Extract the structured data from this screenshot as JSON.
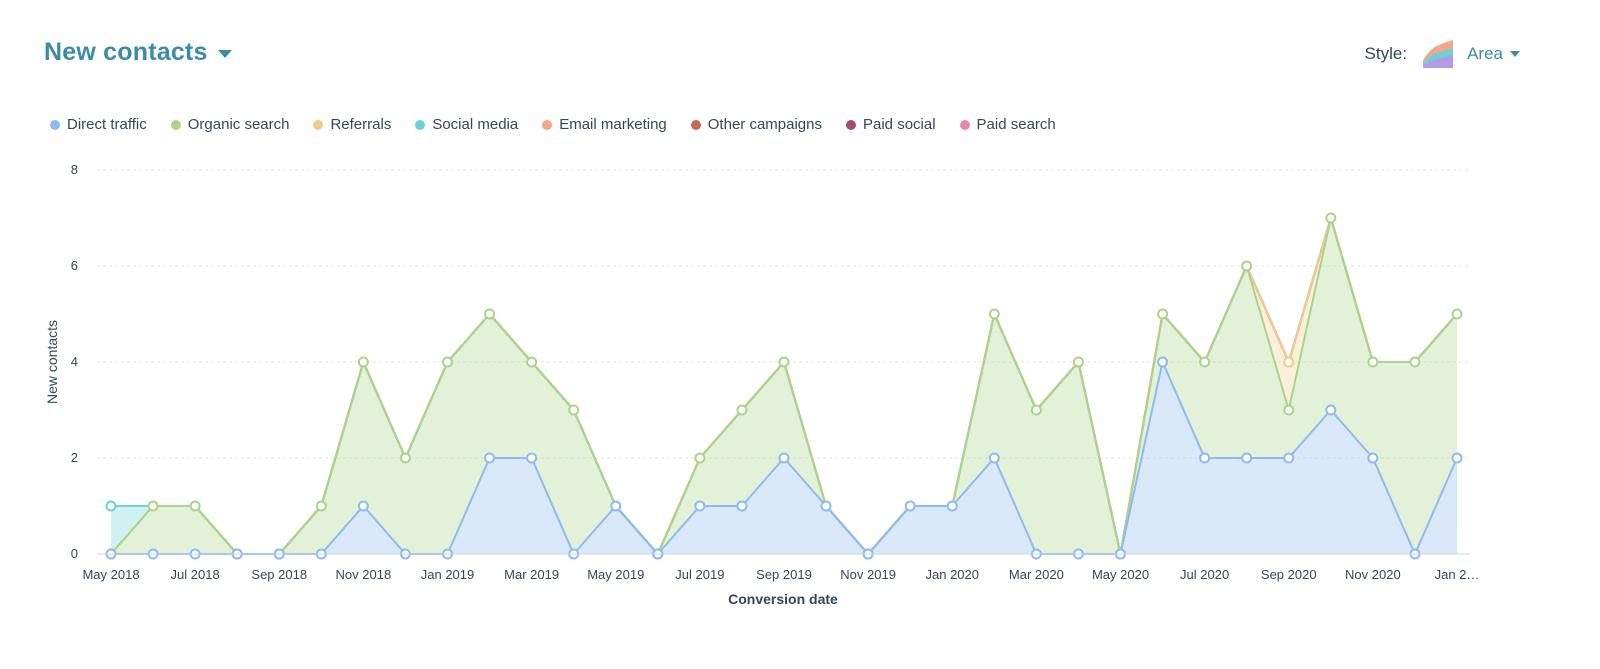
{
  "header": {
    "title": "New contacts"
  },
  "style_picker": {
    "label": "Style:",
    "value": "Area",
    "icon": "area-chart-icon"
  },
  "colors": {
    "title": "#3d8ba6",
    "direct": "#8dbbf0",
    "organic": "#a9d48a",
    "referrals": "#f4c98c",
    "social": "#6fd0d4",
    "email": "#f4a58a",
    "other": "#c26a56",
    "paid_social": "#a14e66",
    "paid_search": "#e38aa8"
  },
  "chart_data": {
    "type": "area",
    "stacked": true,
    "xlabel": "Conversion date",
    "ylabel": "New contacts",
    "ylim": [
      0,
      8
    ],
    "yticks": [
      0,
      2,
      4,
      6,
      8
    ],
    "grid": true,
    "legend_position": "top-left",
    "x": [
      "May 2018",
      "Jun 2018",
      "Jul 2018",
      "Aug 2018",
      "Sep 2018",
      "Oct 2018",
      "Nov 2018",
      "Dec 2018",
      "Jan 2019",
      "Feb 2019",
      "Mar 2019",
      "Apr 2019",
      "May 2019",
      "Jun 2019",
      "Jul 2019",
      "Aug 2019",
      "Sep 2019",
      "Oct 2019",
      "Nov 2019",
      "Dec 2019",
      "Jan 2020",
      "Feb 2020",
      "Mar 2020",
      "Apr 2020",
      "May 2020",
      "Jun 2020",
      "Jul 2020",
      "Aug 2020",
      "Sep 2020",
      "Oct 2020",
      "Nov 2020",
      "Dec 2020",
      "Jan 2021"
    ],
    "xtick_labels": [
      "May 2018",
      "Jul 2018",
      "Sep 2018",
      "Nov 2018",
      "Jan 2019",
      "Mar 2019",
      "May 2019",
      "Jul 2019",
      "Sep 2019",
      "Nov 2019",
      "Jan 2020",
      "Mar 2020",
      "May 2020",
      "Jul 2020",
      "Sep 2020",
      "Nov 2020",
      "Jan 2…"
    ],
    "xtick_every": 2,
    "series": [
      {
        "name": "Direct traffic",
        "color": "#8dbbf0",
        "values": [
          0,
          0,
          0,
          0,
          0,
          0,
          1,
          0,
          0,
          2,
          2,
          0,
          1,
          0,
          1,
          1,
          2,
          1,
          0,
          1,
          1,
          2,
          0,
          0,
          0,
          4,
          2,
          2,
          2,
          3,
          2,
          0,
          2
        ]
      },
      {
        "name": "Organic search",
        "color": "#a9d48a",
        "values": [
          0,
          1,
          1,
          0,
          0,
          1,
          3,
          2,
          4,
          3,
          2,
          3,
          0,
          0,
          1,
          2,
          2,
          0,
          0,
          0,
          0,
          3,
          3,
          4,
          0,
          1,
          2,
          4,
          1,
          4,
          2,
          4,
          3
        ]
      },
      {
        "name": "Referrals",
        "color": "#f4c98c",
        "values": [
          0,
          0,
          0,
          0,
          0,
          0,
          0,
          0,
          0,
          0,
          0,
          0,
          0,
          0,
          0,
          0,
          0,
          0,
          0,
          0,
          0,
          0,
          0,
          0,
          0,
          0,
          0,
          0,
          1,
          0,
          0,
          0,
          0
        ]
      },
      {
        "name": "Social media",
        "color": "#6fd0d4",
        "values": [
          1,
          0,
          0,
          0,
          0,
          0,
          0,
          0,
          0,
          0,
          0,
          0,
          0,
          0,
          0,
          0,
          0,
          0,
          0,
          0,
          0,
          0,
          0,
          0,
          0,
          0,
          0,
          0,
          0,
          0,
          0,
          0,
          0
        ]
      },
      {
        "name": "Email marketing",
        "color": "#f4a58a",
        "values": [
          0,
          0,
          0,
          0,
          0,
          0,
          0,
          0,
          0,
          0,
          0,
          0,
          0,
          0,
          0,
          0,
          0,
          0,
          0,
          0,
          0,
          0,
          0,
          0,
          0,
          0,
          0,
          0,
          0,
          0,
          0,
          0,
          0
        ]
      },
      {
        "name": "Other campaigns",
        "color": "#c26a56",
        "values": [
          0,
          0,
          0,
          0,
          0,
          0,
          0,
          0,
          0,
          0,
          0,
          0,
          0,
          0,
          0,
          0,
          0,
          0,
          0,
          0,
          0,
          0,
          0,
          0,
          0,
          0,
          0,
          0,
          0,
          0,
          0,
          0,
          0
        ]
      },
      {
        "name": "Paid social",
        "color": "#a14e66",
        "values": [
          0,
          0,
          0,
          0,
          0,
          0,
          0,
          0,
          0,
          0,
          0,
          0,
          0,
          0,
          0,
          0,
          0,
          0,
          0,
          0,
          0,
          0,
          0,
          0,
          0,
          0,
          0,
          0,
          0,
          0,
          0,
          0,
          0
        ]
      },
      {
        "name": "Paid search",
        "color": "#e38aa8",
        "values": [
          0,
          0,
          0,
          0,
          0,
          0,
          0,
          0,
          0,
          0,
          0,
          0,
          0,
          0,
          0,
          0,
          0,
          0,
          0,
          0,
          0,
          0,
          0,
          0,
          0,
          0,
          0,
          0,
          0,
          0,
          0,
          0,
          0
        ]
      }
    ]
  }
}
